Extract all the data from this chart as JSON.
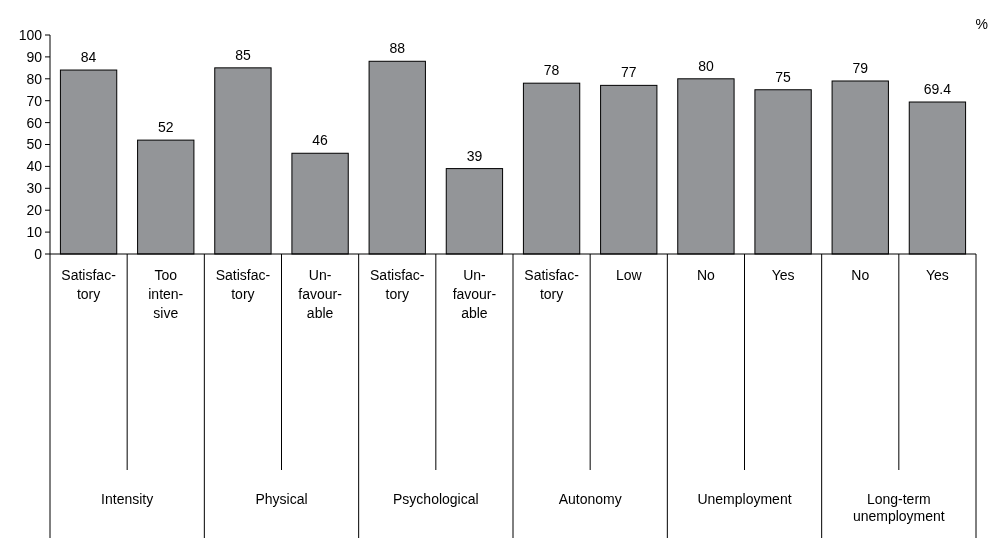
{
  "chart_data": {
    "type": "bar",
    "ylabel": "%",
    "categories": [
      "Satisfac-\ntory",
      "Too\ninten-\nsive",
      "Satisfac-\ntory",
      "Un-\nfavour-\nable",
      "Satisfac-\ntory",
      "Un-\nfavour-\nable",
      "Satisfac-\ntory",
      "Low",
      "No",
      "Yes",
      "No",
      "Yes"
    ],
    "values": [
      84,
      52,
      85,
      46,
      88,
      39,
      78,
      77,
      80,
      75,
      79,
      69.4
    ],
    "color": "#939598",
    "ylim": [
      0,
      100
    ],
    "yticks": [
      0,
      10,
      20,
      30,
      40,
      50,
      60,
      70,
      80,
      90,
      100
    ],
    "data_labels": true,
    "annotations": [
      "Intensity",
      "Physical",
      "Psychological",
      "Autonomy",
      "Unemployment",
      "Long-term\nunemployment"
    ]
  }
}
